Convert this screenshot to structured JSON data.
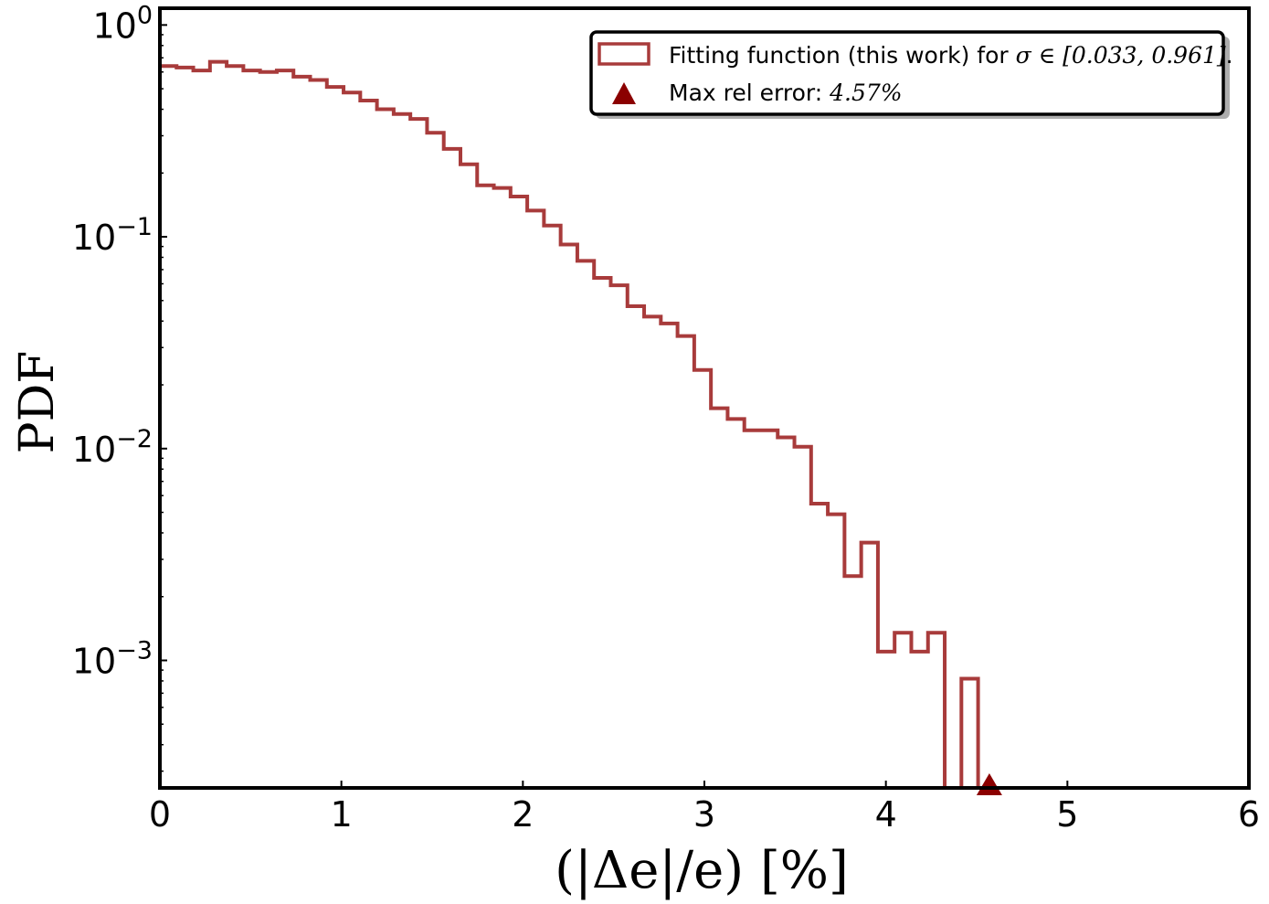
{
  "chart_data": {
    "type": "histogram",
    "xlabel": "(|Δe|/e) [%]",
    "ylabel": "PDF",
    "xlim": [
      0,
      6
    ],
    "ylim": [
      0.00025,
      1.2
    ],
    "yscale": "log",
    "grid": false,
    "legend_position": "top-right",
    "x_ticks": [
      "0",
      "1",
      "2",
      "3",
      "4",
      "5",
      "6"
    ],
    "y_ticks": [
      {
        "base": "10",
        "exp": "0",
        "value": 1
      },
      {
        "base": "10",
        "exp": "−1",
        "value": 0.1
      },
      {
        "base": "10",
        "exp": "−2",
        "value": 0.01
      },
      {
        "base": "10",
        "exp": "−3",
        "value": 0.001
      }
    ],
    "series": [
      {
        "name": "Fitting function (this work) for σ ∈ [0.033, 0.961].",
        "style": "step",
        "color": "#a83b3b",
        "bin_edges": [
          0,
          0.092,
          0.184,
          0.276,
          0.368,
          0.46,
          0.552,
          0.644,
          0.736,
          0.828,
          0.92,
          1.012,
          1.104,
          1.196,
          1.288,
          1.38,
          1.472,
          1.564,
          1.656,
          1.748,
          1.84,
          1.932,
          2.024,
          2.116,
          2.208,
          2.3,
          2.392,
          2.484,
          2.576,
          2.668,
          2.76,
          2.852,
          2.944,
          3.036,
          3.128,
          3.22,
          3.312,
          3.404,
          3.496,
          3.588,
          3.68,
          3.772,
          3.864,
          3.956,
          4.048,
          4.14,
          4.232,
          4.324,
          4.416,
          4.508
        ],
        "values": [
          0.64,
          0.63,
          0.61,
          0.67,
          0.64,
          0.61,
          0.6,
          0.61,
          0.57,
          0.55,
          0.51,
          0.48,
          0.44,
          0.4,
          0.38,
          0.36,
          0.31,
          0.26,
          0.22,
          0.175,
          0.17,
          0.155,
          0.133,
          0.113,
          0.092,
          0.077,
          0.064,
          0.059,
          0.047,
          0.042,
          0.039,
          0.034,
          0.0235,
          0.0155,
          0.0138,
          0.0122,
          0.0122,
          0.0113,
          0.0102,
          0.0055,
          0.0049,
          0.0025,
          0.0036,
          0.0011,
          0.00135,
          0.0011,
          0.00135,
          0.0,
          0.00082
        ]
      },
      {
        "name": "Max rel error: 4.57%",
        "style": "marker",
        "marker": "triangle",
        "color": "#8b0000",
        "x": [
          4.57
        ],
        "y": [
          0.00025
        ]
      }
    ],
    "legend": [
      {
        "label_text": "Fitting function (this work) for ",
        "label_math": "σ ∈ [0.033, 0.961]",
        "label_suffix": "."
      },
      {
        "label_text": "Max rel error: ",
        "label_math": "4.57%",
        "label_suffix": ""
      }
    ]
  }
}
